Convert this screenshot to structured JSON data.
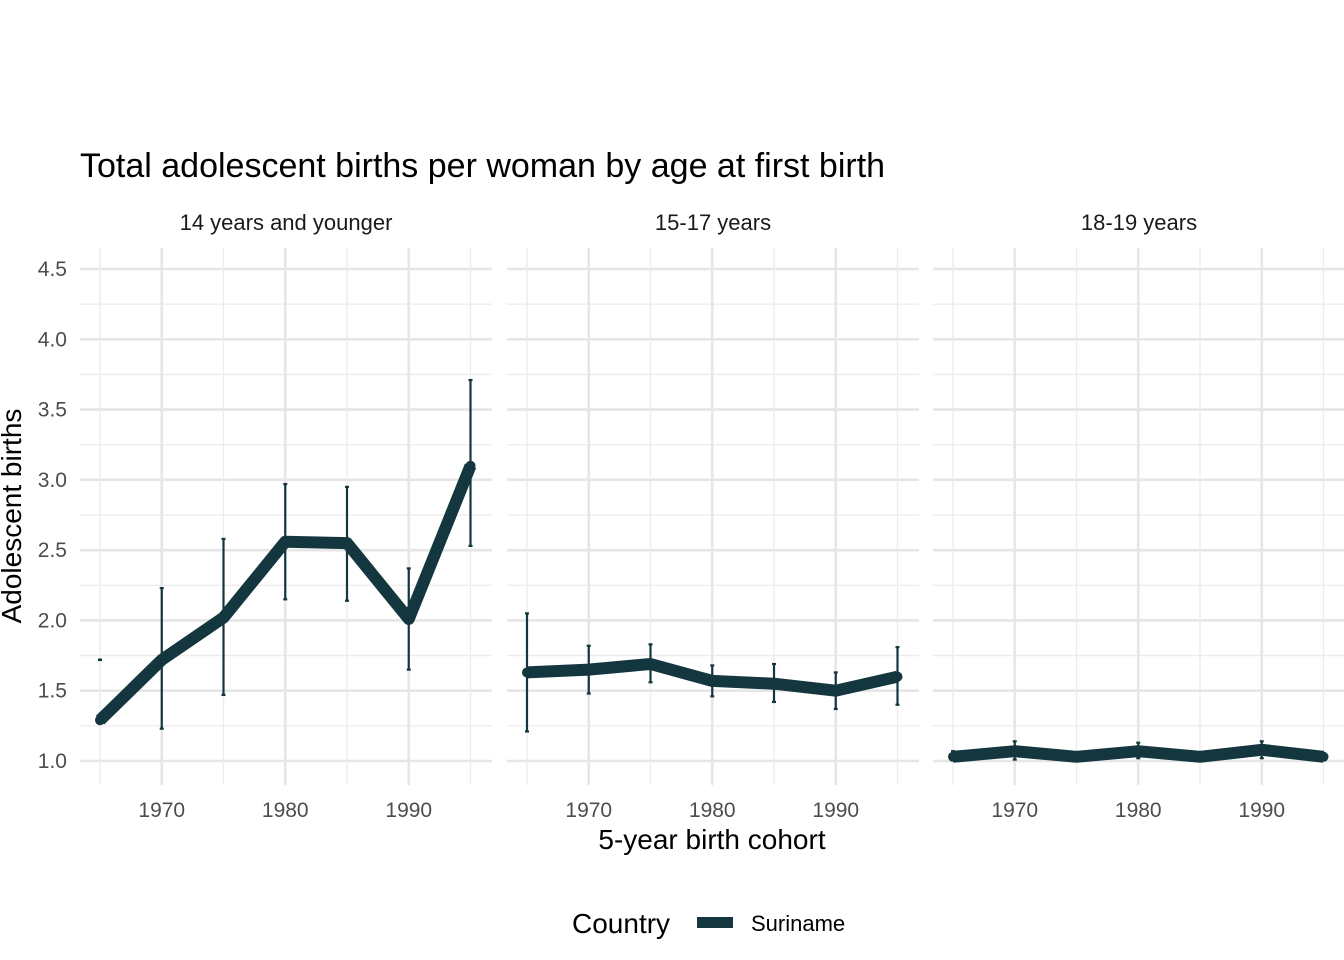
{
  "chart_data": {
    "type": "line",
    "title": "Total adolescent births per woman by age at first birth",
    "xlabel": "5-year birth cohort",
    "ylabel": "Adolescent births",
    "x": [
      1965,
      1970,
      1975,
      1980,
      1985,
      1990,
      1995
    ],
    "xticks": [
      "1970",
      "1980",
      "1990"
    ],
    "yticks": [
      "1.0",
      "1.5",
      "2.0",
      "2.5",
      "3.0",
      "3.5",
      "4.0",
      "4.5"
    ],
    "ylim": [
      0.9,
      4.6
    ],
    "xlim": [
      1963.5,
      1996.5
    ],
    "grid": true,
    "legend": {
      "title": "Country",
      "position": "bottom"
    },
    "series_color": "#14373f",
    "panels": [
      {
        "label": "14 years and younger",
        "series": [
          {
            "name": "Suriname",
            "values": [
              1.29,
              1.72,
              2.02,
              2.56,
              2.55,
              2.01,
              3.1
            ],
            "lower": [
              1.72,
              1.23,
              1.47,
              2.15,
              2.14,
              1.65,
              2.53
            ],
            "upper": [
              1.72,
              2.23,
              2.58,
              2.97,
              2.95,
              2.37,
              3.71
            ]
          }
        ]
      },
      {
        "label": "15-17 years",
        "series": [
          {
            "name": "Suriname",
            "values": [
              1.63,
              1.65,
              1.69,
              1.57,
              1.55,
              1.5,
              1.6
            ],
            "lower": [
              1.21,
              1.48,
              1.56,
              1.46,
              1.42,
              1.37,
              1.4
            ],
            "upper": [
              2.05,
              1.82,
              1.83,
              1.68,
              1.69,
              1.63,
              1.81
            ]
          }
        ]
      },
      {
        "label": "18-19 years",
        "series": [
          {
            "name": "Suriname",
            "values": [
              1.03,
              1.07,
              1.03,
              1.07,
              1.03,
              1.08,
              1.03
            ],
            "lower": [
              1.03,
              1.01,
              1.03,
              1.02,
              1.03,
              1.02,
              1.03
            ],
            "upper": [
              1.07,
              1.14,
              1.03,
              1.13,
              1.03,
              1.14,
              1.03
            ]
          }
        ]
      }
    ]
  }
}
